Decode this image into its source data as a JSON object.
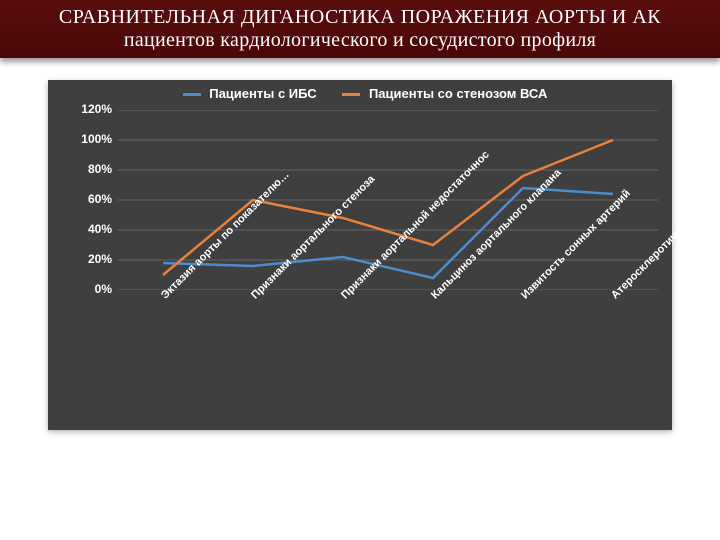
{
  "header": {
    "line1": "СРАВНИТЕЛЬНАЯ ДИГАНОСТИКА ПОРАЖЕНИЯ АОРТЫ И АК",
    "line2": "пациентов кардиологического и сосудистого профиля",
    "bg_top": "#5a0d0d",
    "bg_bottom": "#4a0808",
    "text_color": "#ffffff"
  },
  "chart": {
    "type": "line",
    "plot_bg": "#3f3f3f",
    "grid_color": "#666666",
    "axis_color": "#ffffff",
    "ylim": [
      0,
      120
    ],
    "ytick_step": 20,
    "ytick_suffix": "%",
    "yticks": [
      "0%",
      "20%",
      "40%",
      "60%",
      "80%",
      "100%",
      "120%"
    ],
    "categories": [
      "Эктазия аорты по показателю…",
      "Признаки аортального стеноза",
      "Признаки аортальной недостаточнос",
      "Кальциноз аортального клапана",
      "Извитость сонных артерий",
      "Атеросклеротические бляшки в сонн"
    ],
    "x_label_rotation_deg": -45,
    "x_label_fontsize": 11,
    "y_label_fontsize": 12,
    "legend_fontsize": 13,
    "line_width": 2.5,
    "series": [
      {
        "name": "Пациенты с ИБС",
        "color": "#4a8ecf",
        "values": [
          18,
          16,
          22,
          8,
          68,
          64
        ]
      },
      {
        "name": "Пациенты со стенозом ВСА",
        "color": "#e8823a",
        "values": [
          10,
          60,
          48,
          30,
          76,
          100
        ]
      }
    ]
  }
}
